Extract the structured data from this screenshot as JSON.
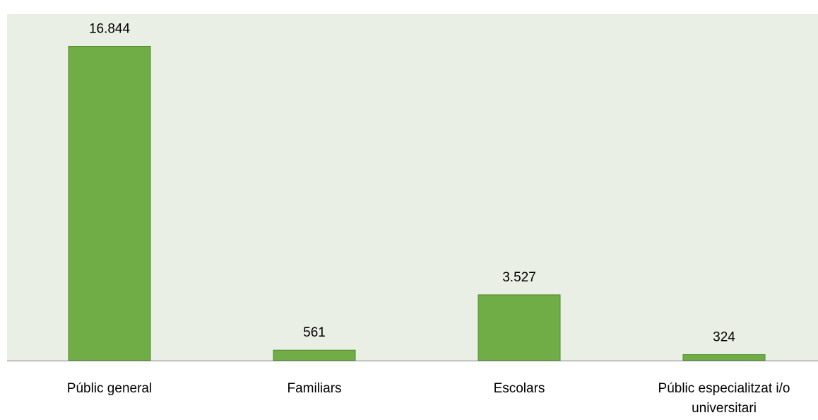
{
  "chart_data": {
    "type": "bar",
    "categories": [
      "Públic general",
      "Familiars",
      "Escolars",
      "Públic especialitzat i/o universitari"
    ],
    "category_lines": [
      [
        "Públic general"
      ],
      [
        "Familiars"
      ],
      [
        "Escolars"
      ],
      [
        "Públic especialitzat i/o",
        "universitari"
      ]
    ],
    "values": [
      16844,
      561,
      3527,
      324
    ],
    "value_labels": [
      "16.844",
      "561",
      "3.527",
      "324"
    ],
    "ylim": [
      0,
      18000
    ],
    "grid": false,
    "legend": "none",
    "colors": {
      "plot_background": "#EAEFE6",
      "bar_fill": "#70AD47",
      "bar_stroke": "#4E8A2C",
      "axis_line": "#808080",
      "text": "#000000"
    }
  }
}
